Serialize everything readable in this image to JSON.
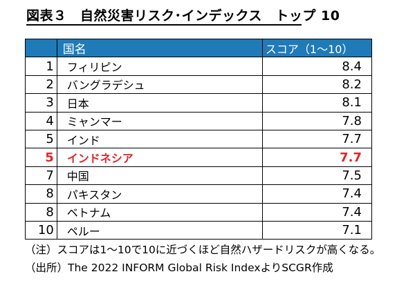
{
  "title": "図表３　自然災害リスク･インデックス　トップ 10",
  "table": {
    "headers": [
      "",
      "国名",
      "スコア（1～10）"
    ],
    "rows": [
      {
        "rank": "1",
        "country": "フィリピン",
        "score": "8.4"
      },
      {
        "rank": "2",
        "country": "バングラデシュ",
        "score": "8.2"
      },
      {
        "rank": "3",
        "country": "日本",
        "score": "8.1"
      },
      {
        "rank": "4",
        "country": "ミャンマー",
        "score": "7.8"
      },
      {
        "rank": "5",
        "country": "インド",
        "score": "7.7"
      },
      {
        "rank": "5",
        "country": "インドネシア",
        "score": "7.7",
        "highlight": true
      },
      {
        "rank": "7",
        "country": "中国",
        "score": "7.5"
      },
      {
        "rank": "8",
        "country": "パキスタン",
        "score": "7.4"
      },
      {
        "rank": "8",
        "country": "ベトナム",
        "score": "7.4"
      },
      {
        "rank": "10",
        "country": "ペルー",
        "score": "7.1"
      }
    ]
  },
  "notes": {
    "note": "（注）スコアは1～10で10に近づくほど自然ハザードリスクが高くなる。",
    "source": "（出所）The 2022 INFORM Global Risk IndexよりSCGR作成"
  },
  "colors": {
    "header_bg": "#1f7ab8",
    "highlight": "#e0262a"
  }
}
